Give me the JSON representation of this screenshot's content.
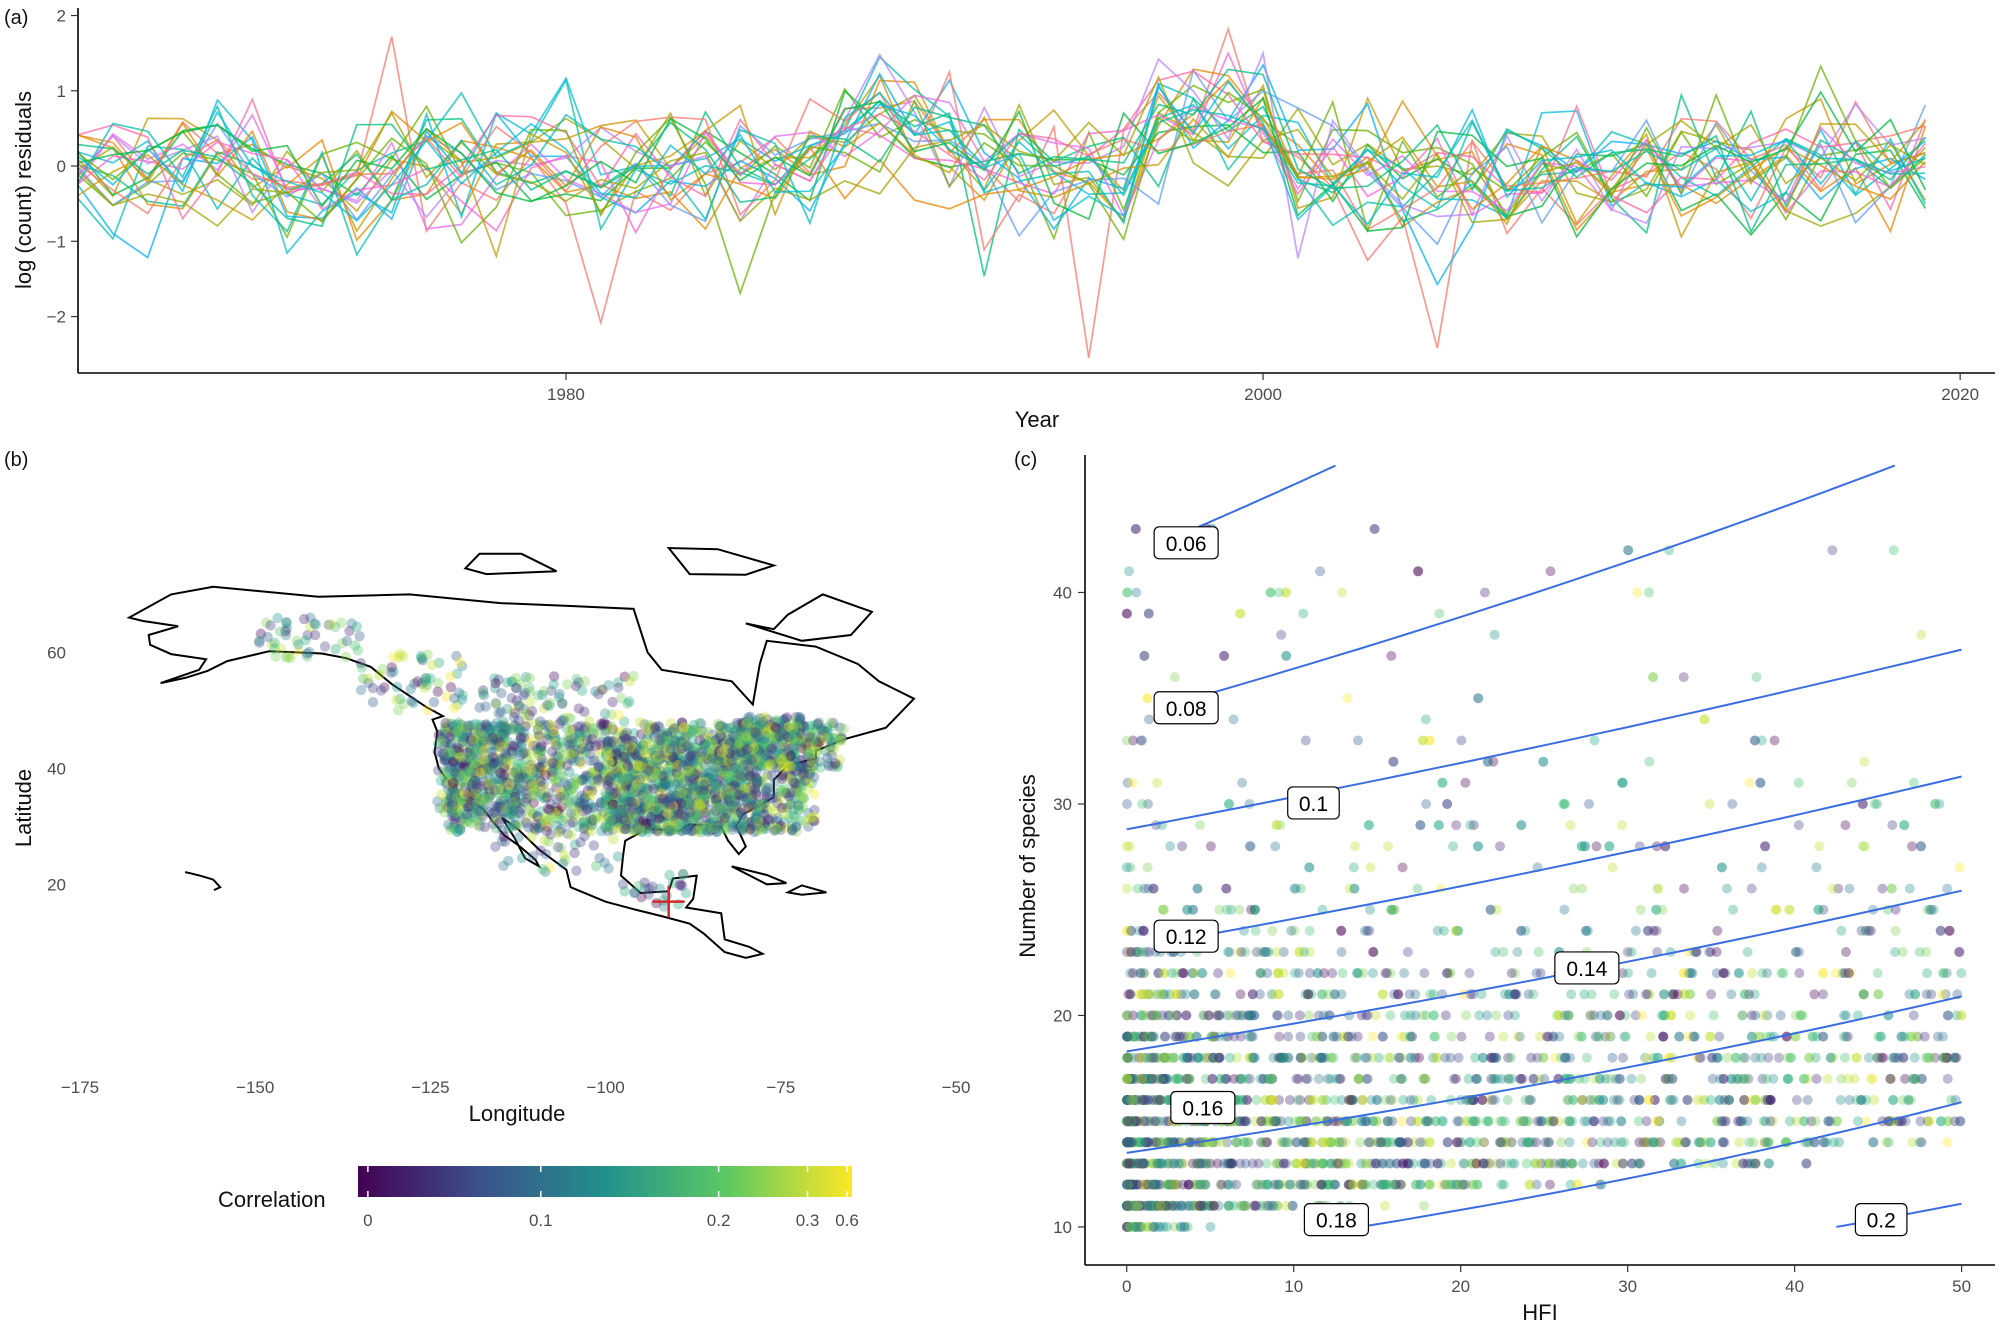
{
  "panels": {
    "a": "(a)",
    "b": "(b)",
    "c": "(c)"
  },
  "chart_data": [
    {
      "type": "line",
      "panel": "(a)",
      "xlabel": "Year",
      "ylabel": "log (count) residuals",
      "xlim": [
        1966,
        2021
      ],
      "ylim": [
        -2.75,
        2.1
      ],
      "xticks": [
        1980,
        2000,
        2020
      ],
      "yticks": [
        -2,
        -1,
        0,
        1,
        2
      ],
      "x_start": 1966,
      "x_end": 2019,
      "series_count": 24,
      "colors": [
        "#F8766D",
        "#E58700",
        "#C99800",
        "#A3A500",
        "#6BB100",
        "#00BA38",
        "#00BF7D",
        "#00C0AF",
        "#00BCD8",
        "#00B0F6",
        "#619CFF",
        "#B983FF",
        "#E76BF3",
        "#FD61D1",
        "#FF67A4"
      ],
      "notable_points": [
        {
          "x": 1975,
          "y": 1.72
        },
        {
          "x": 1995,
          "y": -2.55
        },
        {
          "x": 1999,
          "y": 1.82
        },
        {
          "x": 2005,
          "y": -2.42
        },
        {
          "x": 1981,
          "y": -2.08
        }
      ]
    },
    {
      "type": "scatter",
      "panel": "(b)",
      "xlabel": "Longitude",
      "ylabel": "Latitude",
      "xlim": [
        -175,
        -50
      ],
      "ylim": [
        -6,
        78
      ],
      "xticks": [
        -175,
        -150,
        -125,
        -100,
        -75,
        -50
      ],
      "yticks": [
        20,
        40,
        60
      ],
      "marker": {
        "lon": -91,
        "lat": 17,
        "color": "#d62728"
      },
      "legend_title": "Correlation",
      "colorbar_ticks": [
        "0",
        "0.1",
        "0.2",
        "0.3",
        "0.6"
      ],
      "colormap": [
        "#440154",
        "#3b528b",
        "#21918c",
        "#5ec962",
        "#fde725"
      ]
    },
    {
      "type": "scatter",
      "panel": "(c)",
      "xlabel": "HFI",
      "ylabel": "Number of species",
      "xlim": [
        -2.5,
        52
      ],
      "ylim": [
        8.2,
        46.5
      ],
      "xticks": [
        0,
        10,
        20,
        30,
        40,
        50
      ],
      "yticks": [
        10,
        20,
        30,
        40
      ],
      "contour_color": "#3a6ee0",
      "contours": [
        {
          "label": "0.06",
          "x0": 4,
          "x1": 12.5,
          "y0": 43,
          "y1": 46
        },
        {
          "label": "0.08",
          "x0": 4,
          "x1": 46,
          "y0": 35,
          "y1": 46
        },
        {
          "label": "0.1",
          "x0": 0,
          "x1": 50,
          "y0": 28.8,
          "y1": 37.3
        },
        {
          "label": "0.12",
          "x0": 4,
          "x1": 50,
          "y0": 23.7,
          "y1": 31.3
        },
        {
          "label": "0.14",
          "x0": 0,
          "x1": 50,
          "y0": 18.3,
          "y1": 25.9
        },
        {
          "label": "0.16",
          "x0": 0,
          "x1": 50,
          "y0": 13.5,
          "y1": 20.9
        },
        {
          "label": "0.18",
          "x0": 14,
          "x1": 50,
          "y0": 10,
          "y1": 15.9
        },
        {
          "label": "0.2",
          "x0": 42.5,
          "x1": 50,
          "y0": 10,
          "y1": 11.1
        }
      ],
      "contour_labels": [
        {
          "text": "0.06",
          "x": 2,
          "y": 42.3
        },
        {
          "text": "0.08",
          "x": 2,
          "y": 34.5
        },
        {
          "text": "0.1",
          "x": 10,
          "y": 30.0
        },
        {
          "text": "0.12",
          "x": 2,
          "y": 23.7
        },
        {
          "text": "0.14",
          "x": 26,
          "y": 22.2
        },
        {
          "text": "0.16",
          "x": 3,
          "y": 15.6
        },
        {
          "text": "0.18",
          "x": 11,
          "y": 10.3
        },
        {
          "text": "0.2",
          "x": 44,
          "y": 10.3
        }
      ]
    }
  ]
}
